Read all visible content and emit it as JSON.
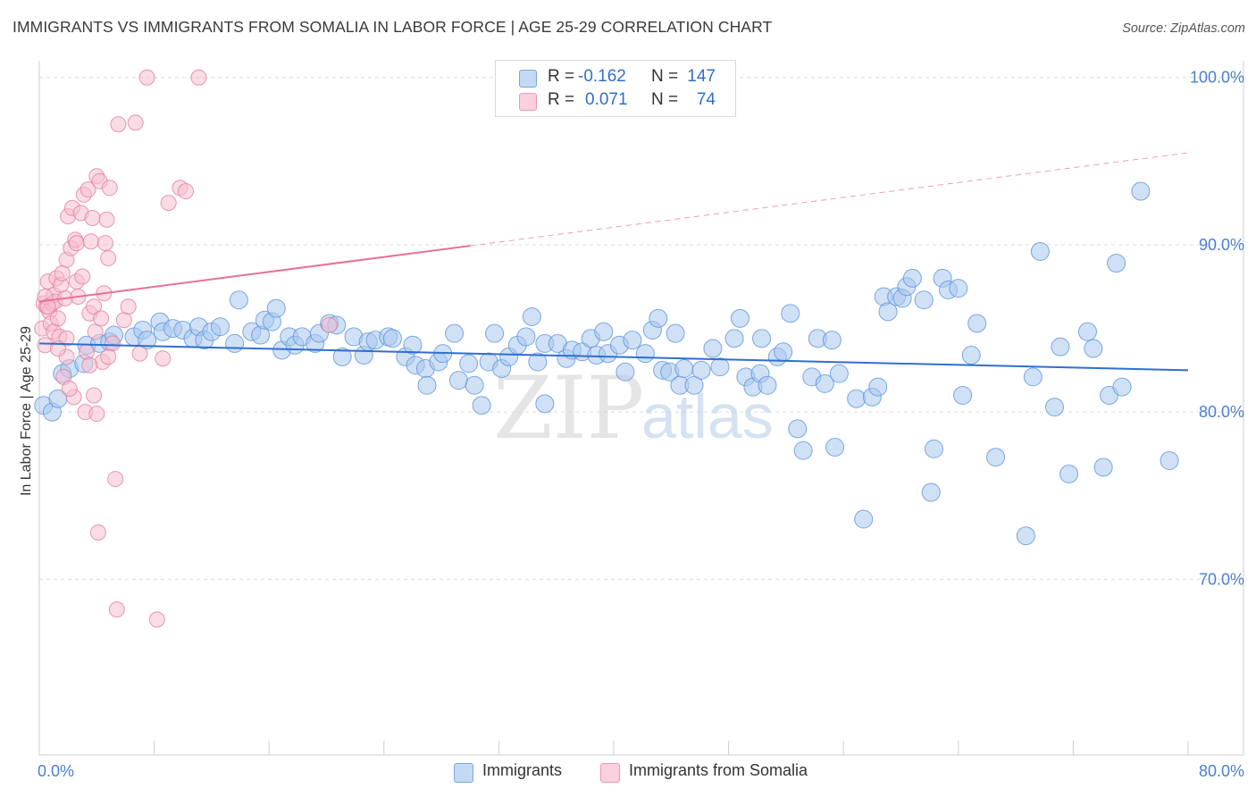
{
  "title": "IMMIGRANTS VS IMMIGRANTS FROM SOMALIA IN LABOR FORCE | AGE 25-29 CORRELATION CHART",
  "source": "Source: ZipAtlas.com",
  "watermark": {
    "zip": "ZIP",
    "atlas": "atlas"
  },
  "legend": {
    "rows": [
      {
        "r_label": "R =",
        "r_value": "-0.162",
        "n_label": "N =",
        "n_value": "147",
        "color": "#8db8ea"
      },
      {
        "r_label": "R =",
        "r_value": "0.071",
        "n_label": "N =",
        "n_value": "74",
        "color": "#f3a9c0"
      }
    ]
  },
  "bottom_legend": [
    "Immigrants",
    "Immigrants from Somalia"
  ],
  "colors": {
    "blue_fill": "#a9c8ee",
    "blue_stroke": "#5b93db",
    "blue_line": "#2f6fcf",
    "pink_fill": "#f6bfd0",
    "pink_stroke": "#e57da0",
    "pink_line": "#e8709a",
    "grid": "#dcdcdc",
    "tick_text": "#4a7fd0"
  },
  "chart_data": {
    "type": "scatter",
    "title": "IMMIGRANTS VS IMMIGRANTS FROM SOMALIA IN LABOR FORCE | AGE 25-29 CORRELATION CHART",
    "xlabel": "",
    "ylabel": "In Labor Force | Age 25-29",
    "xlim": [
      0,
      80
    ],
    "ylim": [
      59.5,
      101
    ],
    "x_tick_labels": [
      "0.0%",
      "80.0%"
    ],
    "y_ticks": [
      70,
      80,
      90,
      100
    ],
    "y_tick_labels": [
      "70.0%",
      "80.0%",
      "90.0%",
      "100.0%"
    ],
    "series": [
      {
        "name": "Immigrants",
        "r": -0.162,
        "n": 147,
        "trend": {
          "x": [
            0,
            80
          ],
          "y": [
            84.1,
            82.5
          ],
          "dashed_from": null
        },
        "points": [
          [
            0.3,
            80.4
          ],
          [
            0.9,
            80.0
          ],
          [
            1.3,
            80.8
          ],
          [
            1.6,
            82.3
          ],
          [
            2.1,
            82.6
          ],
          [
            3.1,
            82.9
          ],
          [
            3.3,
            84.0
          ],
          [
            4.2,
            84.1
          ],
          [
            4.9,
            84.2
          ],
          [
            5.2,
            84.6
          ],
          [
            6.6,
            84.5
          ],
          [
            7.2,
            84.9
          ],
          [
            7.5,
            84.3
          ],
          [
            8.4,
            85.4
          ],
          [
            8.6,
            84.8
          ],
          [
            9.3,
            85.0
          ],
          [
            10.0,
            84.9
          ],
          [
            10.7,
            84.4
          ],
          [
            11.1,
            85.1
          ],
          [
            11.5,
            84.3
          ],
          [
            12.0,
            84.8
          ],
          [
            12.6,
            85.1
          ],
          [
            13.6,
            84.1
          ],
          [
            13.9,
            86.7
          ],
          [
            14.8,
            84.8
          ],
          [
            15.4,
            84.6
          ],
          [
            15.7,
            85.5
          ],
          [
            16.2,
            85.4
          ],
          [
            16.5,
            86.2
          ],
          [
            16.9,
            83.7
          ],
          [
            17.4,
            84.5
          ],
          [
            17.8,
            84.0
          ],
          [
            18.3,
            84.5
          ],
          [
            19.2,
            84.1
          ],
          [
            19.5,
            84.7
          ],
          [
            20.2,
            85.3
          ],
          [
            20.7,
            85.2
          ],
          [
            21.1,
            83.3
          ],
          [
            21.9,
            84.5
          ],
          [
            22.6,
            83.4
          ],
          [
            22.9,
            84.2
          ],
          [
            23.4,
            84.3
          ],
          [
            24.3,
            84.5
          ],
          [
            24.6,
            84.4
          ],
          [
            25.5,
            83.3
          ],
          [
            26.0,
            84.0
          ],
          [
            26.2,
            82.8
          ],
          [
            26.9,
            82.6
          ],
          [
            27.0,
            81.6
          ],
          [
            27.8,
            83.0
          ],
          [
            28.1,
            83.5
          ],
          [
            28.9,
            84.7
          ],
          [
            29.2,
            81.9
          ],
          [
            29.9,
            82.9
          ],
          [
            30.3,
            81.6
          ],
          [
            30.8,
            80.4
          ],
          [
            31.3,
            83.0
          ],
          [
            31.7,
            84.7
          ],
          [
            32.2,
            82.6
          ],
          [
            32.7,
            83.3
          ],
          [
            33.3,
            84.0
          ],
          [
            33.9,
            84.5
          ],
          [
            34.3,
            85.7
          ],
          [
            34.7,
            83.0
          ],
          [
            35.2,
            84.1
          ],
          [
            35.2,
            80.5
          ],
          [
            36.1,
            84.1
          ],
          [
            36.7,
            83.2
          ],
          [
            37.1,
            83.7
          ],
          [
            37.8,
            83.6
          ],
          [
            38.4,
            84.4
          ],
          [
            38.8,
            83.4
          ],
          [
            39.3,
            84.8
          ],
          [
            39.6,
            83.5
          ],
          [
            40.4,
            84.0
          ],
          [
            40.8,
            82.4
          ],
          [
            41.3,
            84.3
          ],
          [
            42.2,
            83.5
          ],
          [
            42.7,
            84.9
          ],
          [
            43.1,
            85.6
          ],
          [
            43.4,
            82.5
          ],
          [
            43.9,
            82.4
          ],
          [
            44.3,
            84.7
          ],
          [
            44.6,
            81.6
          ],
          [
            44.9,
            82.6
          ],
          [
            45.6,
            81.6
          ],
          [
            46.1,
            82.5
          ],
          [
            46.9,
            83.8
          ],
          [
            47.4,
            82.7
          ],
          [
            48.4,
            84.4
          ],
          [
            48.8,
            85.6
          ],
          [
            49.2,
            82.1
          ],
          [
            49.7,
            81.5
          ],
          [
            50.2,
            82.3
          ],
          [
            50.3,
            84.4
          ],
          [
            50.7,
            81.6
          ],
          [
            51.4,
            83.3
          ],
          [
            51.8,
            83.6
          ],
          [
            52.3,
            85.9
          ],
          [
            52.8,
            79.0
          ],
          [
            53.2,
            77.7
          ],
          [
            53.8,
            82.1
          ],
          [
            54.2,
            84.4
          ],
          [
            54.7,
            81.7
          ],
          [
            55.2,
            84.3
          ],
          [
            55.4,
            77.9
          ],
          [
            55.7,
            82.3
          ],
          [
            56.9,
            80.8
          ],
          [
            57.4,
            73.6
          ],
          [
            58.0,
            80.9
          ],
          [
            58.4,
            81.5
          ],
          [
            58.8,
            86.9
          ],
          [
            59.1,
            86.0
          ],
          [
            59.7,
            86.9
          ],
          [
            60.1,
            86.8
          ],
          [
            60.4,
            87.5
          ],
          [
            60.8,
            88.0
          ],
          [
            61.6,
            86.7
          ],
          [
            62.1,
            75.2
          ],
          [
            62.3,
            77.8
          ],
          [
            62.9,
            88.0
          ],
          [
            63.3,
            87.3
          ],
          [
            64.0,
            87.4
          ],
          [
            64.3,
            81.0
          ],
          [
            64.9,
            83.4
          ],
          [
            65.3,
            85.3
          ],
          [
            66.6,
            77.3
          ],
          [
            68.7,
            72.6
          ],
          [
            69.2,
            82.1
          ],
          [
            69.7,
            89.6
          ],
          [
            70.7,
            80.3
          ],
          [
            71.1,
            83.9
          ],
          [
            71.7,
            76.3
          ],
          [
            73.0,
            84.8
          ],
          [
            73.4,
            83.8
          ],
          [
            74.1,
            76.7
          ],
          [
            74.5,
            81.0
          ],
          [
            75.0,
            88.9
          ],
          [
            75.4,
            81.5
          ],
          [
            76.7,
            93.2
          ],
          [
            78.7,
            77.1
          ]
        ]
      },
      {
        "name": "Immigrants from Somalia",
        "r": 0.071,
        "n": 74,
        "trend": {
          "x": [
            0,
            80
          ],
          "y": [
            86.6,
            95.5
          ],
          "dashed_from": 30
        },
        "points": [
          [
            0.2,
            85.0
          ],
          [
            0.3,
            86.5
          ],
          [
            0.4,
            84.0
          ],
          [
            0.5,
            86.3
          ],
          [
            0.6,
            87.8
          ],
          [
            0.7,
            86.0
          ],
          [
            0.8,
            85.3
          ],
          [
            0.9,
            86.5
          ],
          [
            1.0,
            87.0
          ],
          [
            1.0,
            84.8
          ],
          [
            1.1,
            86.6
          ],
          [
            1.2,
            88.0
          ],
          [
            1.3,
            85.6
          ],
          [
            1.4,
            84.5
          ],
          [
            1.5,
            87.6
          ],
          [
            1.6,
            88.3
          ],
          [
            1.7,
            82.1
          ],
          [
            1.8,
            86.8
          ],
          [
            1.9,
            83.3
          ],
          [
            1.9,
            84.4
          ],
          [
            1.9,
            89.1
          ],
          [
            2.0,
            91.7
          ],
          [
            2.2,
            89.8
          ],
          [
            2.3,
            92.2
          ],
          [
            2.4,
            80.9
          ],
          [
            2.5,
            90.3
          ],
          [
            2.6,
            87.8
          ],
          [
            2.6,
            90.1
          ],
          [
            2.7,
            86.9
          ],
          [
            2.9,
            91.9
          ],
          [
            3.0,
            88.1
          ],
          [
            3.1,
            93.0
          ],
          [
            3.2,
            80.0
          ],
          [
            3.3,
            83.6
          ],
          [
            3.4,
            93.3
          ],
          [
            3.5,
            85.9
          ],
          [
            3.6,
            90.2
          ],
          [
            3.7,
            91.6
          ],
          [
            3.8,
            86.3
          ],
          [
            3.8,
            81.0
          ],
          [
            3.9,
            84.8
          ],
          [
            4.0,
            94.1
          ],
          [
            4.0,
            79.9
          ],
          [
            4.1,
            72.8
          ],
          [
            4.2,
            93.8
          ],
          [
            4.3,
            85.6
          ],
          [
            4.4,
            83.0
          ],
          [
            4.5,
            87.1
          ],
          [
            4.6,
            90.1
          ],
          [
            4.7,
            91.5
          ],
          [
            4.8,
            89.2
          ],
          [
            4.9,
            93.4
          ],
          [
            5.1,
            84.1
          ],
          [
            5.3,
            76.0
          ],
          [
            5.4,
            68.2
          ],
          [
            5.5,
            97.2
          ],
          [
            5.9,
            85.5
          ],
          [
            6.2,
            86.3
          ],
          [
            6.7,
            97.3
          ],
          [
            7.0,
            83.5
          ],
          [
            7.5,
            100.0
          ],
          [
            8.6,
            83.2
          ],
          [
            9.0,
            92.5
          ],
          [
            9.8,
            93.4
          ],
          [
            10.2,
            93.2
          ],
          [
            11.1,
            100.0
          ],
          [
            20.2,
            85.2
          ],
          [
            8.2,
            67.6
          ],
          [
            0.4,
            86.9
          ],
          [
            0.6,
            86.3
          ],
          [
            1.3,
            83.8
          ],
          [
            3.5,
            82.8
          ],
          [
            2.1,
            81.4
          ],
          [
            4.8,
            83.3
          ]
        ]
      }
    ]
  }
}
